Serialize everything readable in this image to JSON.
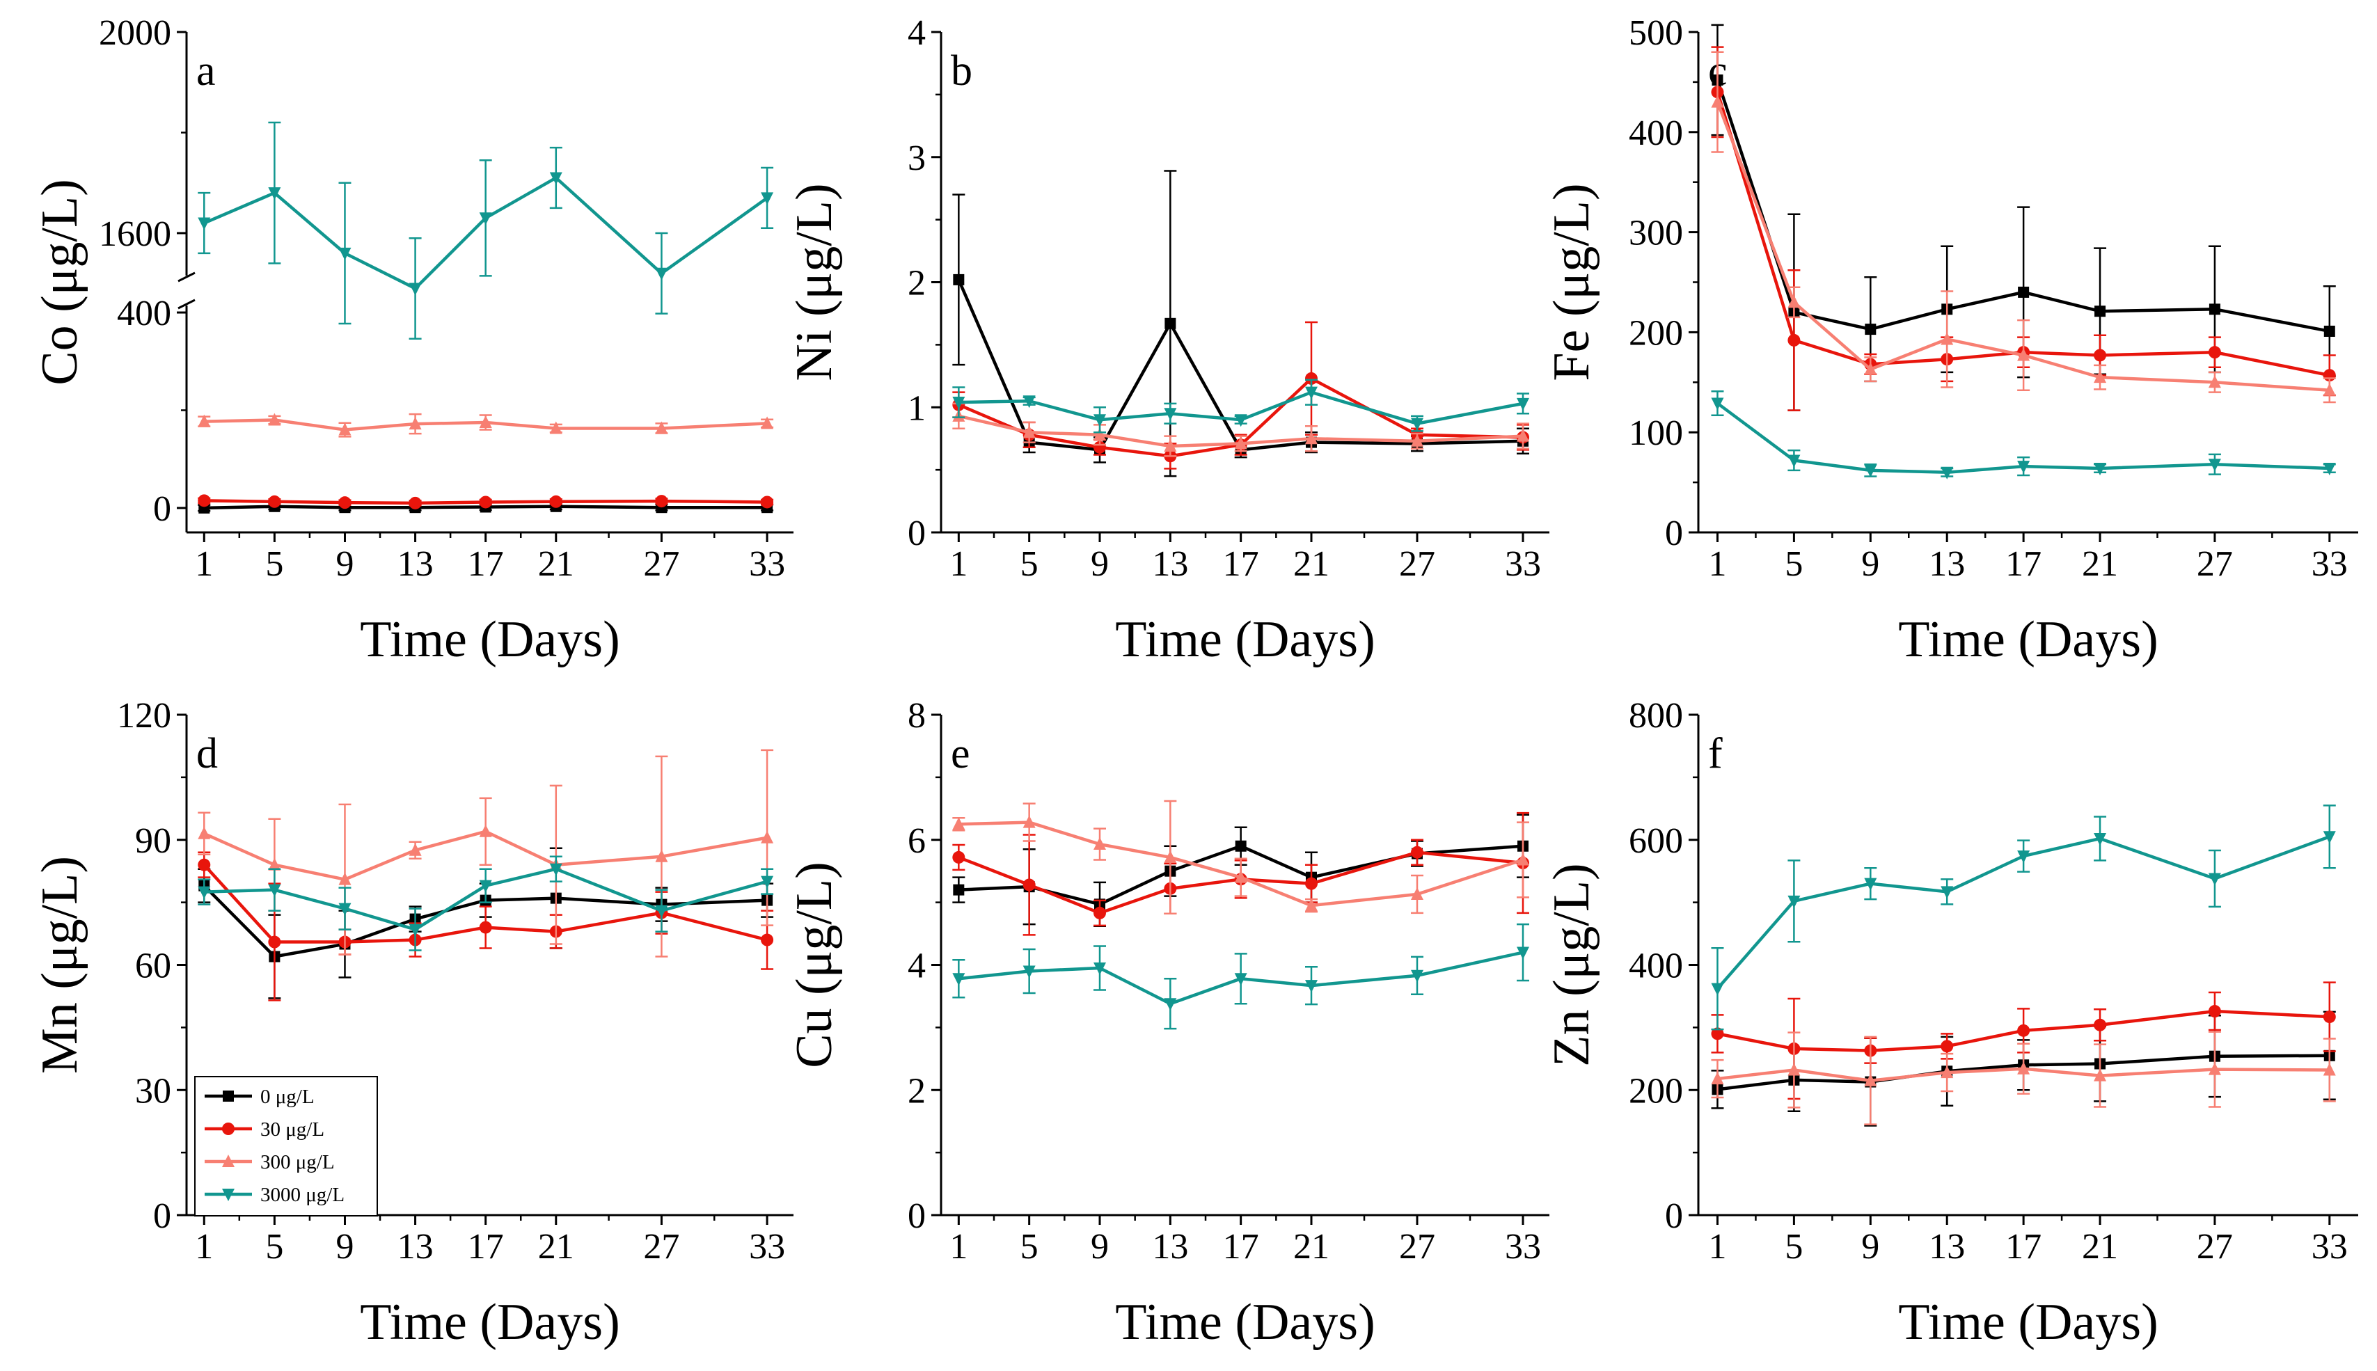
{
  "figure": {
    "legend_location": "lower-left of panel d"
  },
  "legend": [
    {
      "label": "0 μg/L",
      "color": "#000000",
      "marker": "square"
    },
    {
      "label": "30 μg/L",
      "color": "#e8150c",
      "marker": "circle"
    },
    {
      "label": "300 μg/L",
      "color": "#f77f72",
      "marker": "triangle-up"
    },
    {
      "label": "3000 μg/L",
      "color": "#11968f",
      "marker": "triangle-down"
    }
  ],
  "chart_data": [
    {
      "type": "line",
      "panel": "a",
      "xlabel": "Time (Days)",
      "ylabel": "Co (μg/L)",
      "x": [
        1,
        5,
        9,
        13,
        17,
        21,
        27,
        33
      ],
      "xticks": [
        "1",
        "5",
        "9",
        "13",
        "17",
        "21",
        "27",
        "33"
      ],
      "xlim": [
        0,
        34.5
      ],
      "axis_break": true,
      "lower_ylim": [
        -50,
        420
      ],
      "upper_ylim": [
        1510,
        2000
      ],
      "yticks": [
        "0",
        "400",
        "1600",
        "2000"
      ],
      "series": [
        {
          "name": "0 μg/L",
          "values": [
            0,
            3,
            1,
            1,
            2,
            3,
            1,
            1
          ],
          "errors": [
            6,
            6,
            6,
            6,
            6,
            6,
            6,
            6
          ]
        },
        {
          "name": "30 μg/L",
          "values": [
            15,
            13,
            11,
            10,
            12,
            13,
            14,
            12
          ],
          "errors": [
            5,
            5,
            5,
            5,
            5,
            5,
            5,
            5
          ]
        },
        {
          "name": "300 μg/L",
          "values": [
            177,
            180,
            160,
            172,
            175,
            163,
            163,
            173
          ],
          "errors": [
            10,
            8,
            14,
            20,
            15,
            8,
            10,
            8
          ]
        },
        {
          "name": "3000 μg/L",
          "values": [
            1620,
            1680,
            1560,
            1490,
            1630,
            1710,
            1520,
            1670
          ],
          "errors": [
            60,
            140,
            140,
            100,
            115,
            60,
            80,
            60
          ]
        }
      ]
    },
    {
      "type": "line",
      "panel": "b",
      "xlabel": "Time (Days)",
      "ylabel": "Ni (μg/L)",
      "x": [
        1,
        5,
        9,
        13,
        17,
        21,
        27,
        33
      ],
      "xticks": [
        "1",
        "5",
        "9",
        "13",
        "17",
        "21",
        "27",
        "33"
      ],
      "xlim": [
        0,
        34.5
      ],
      "ylim": [
        0,
        4
      ],
      "yticks": [
        "0",
        "1",
        "2",
        "3",
        "4"
      ],
      "series": [
        {
          "name": "0 μg/L",
          "values": [
            2.02,
            0.72,
            0.66,
            1.67,
            0.66,
            0.72,
            0.71,
            0.73
          ],
          "errors": [
            0.68,
            0.08,
            0.1,
            1.22,
            0.06,
            0.08,
            0.06,
            0.1
          ]
        },
        {
          "name": "30 μg/L",
          "values": [
            1.02,
            0.78,
            0.68,
            0.61,
            0.7,
            1.23,
            0.78,
            0.76
          ],
          "errors": [
            0.1,
            0.1,
            0.06,
            0.1,
            0.08,
            0.45,
            0.05,
            0.1
          ]
        },
        {
          "name": "300 μg/L",
          "values": [
            0.93,
            0.8,
            0.78,
            0.69,
            0.71,
            0.75,
            0.73,
            0.77
          ],
          "errors": [
            0.1,
            0.08,
            0.08,
            0.08,
            0.06,
            0.1,
            0.06,
            0.1
          ]
        },
        {
          "name": "3000 μg/L",
          "values": [
            1.04,
            1.05,
            0.9,
            0.95,
            0.9,
            1.12,
            0.87,
            1.03
          ],
          "errors": [
            0.12,
            0.03,
            0.1,
            0.08,
            0.03,
            0.1,
            0.06,
            0.08
          ]
        }
      ]
    },
    {
      "type": "line",
      "panel": "c",
      "xlabel": "Time (Days)",
      "ylabel": "Fe (μg/L)",
      "x": [
        1,
        5,
        9,
        13,
        17,
        21,
        27,
        33
      ],
      "xticks": [
        "1",
        "5",
        "9",
        "13",
        "17",
        "21",
        "27",
        "33"
      ],
      "xlim": [
        0,
        34.5
      ],
      "ylim": [
        0,
        500
      ],
      "yticks": [
        "0",
        "100",
        "200",
        "300",
        "400",
        "500"
      ],
      "series": [
        {
          "name": "0 μg/L",
          "values": [
            452,
            220,
            203,
            223,
            240,
            221,
            223,
            201
          ],
          "errors": [
            55,
            98,
            52,
            63,
            85,
            63,
            63,
            45
          ]
        },
        {
          "name": "30 μg/L",
          "values": [
            440,
            192,
            168,
            173,
            180,
            177,
            180,
            157
          ],
          "errors": [
            45,
            70,
            10,
            22,
            15,
            20,
            15,
            20
          ]
        },
        {
          "name": "300 μg/L",
          "values": [
            430,
            230,
            163,
            193,
            177,
            155,
            150,
            142
          ],
          "errors": [
            50,
            15,
            12,
            48,
            35,
            12,
            10,
            12
          ]
        },
        {
          "name": "3000 μg/L",
          "values": [
            129,
            72,
            62,
            60,
            66,
            64,
            68,
            64
          ],
          "errors": [
            12,
            10,
            6,
            4,
            9,
            4,
            10,
            4
          ]
        }
      ]
    },
    {
      "type": "line",
      "panel": "d",
      "xlabel": "Time (Days)",
      "ylabel": "Mn (μg/L)",
      "x": [
        1,
        5,
        9,
        13,
        17,
        21,
        27,
        33
      ],
      "xticks": [
        "1",
        "5",
        "9",
        "13",
        "17",
        "21",
        "27",
        "33"
      ],
      "xlim": [
        0,
        34.5
      ],
      "ylim": [
        0,
        120
      ],
      "yticks": [
        "0",
        "30",
        "60",
        "90",
        "120"
      ],
      "series": [
        {
          "name": "0 μg/L",
          "values": [
            79,
            62,
            65,
            71,
            75.5,
            76,
            74.5,
            75.5
          ],
          "errors": [
            4,
            10,
            8,
            3,
            4,
            12,
            4,
            4
          ]
        },
        {
          "name": "30 μg/L",
          "values": [
            84,
            65.5,
            65.5,
            66,
            69,
            68,
            72.5,
            66
          ],
          "errors": [
            3,
            14,
            3,
            4,
            5,
            4,
            5,
            7
          ]
        },
        {
          "name": "300 μg/L",
          "values": [
            91.5,
            84,
            80.5,
            87.5,
            92,
            84,
            86,
            90.5
          ],
          "errors": [
            5,
            11,
            18,
            2,
            8,
            19,
            24,
            21
          ]
        },
        {
          "name": "3000 μg/L",
          "values": [
            77.5,
            78,
            73.5,
            68.5,
            79,
            83,
            73,
            80
          ],
          "errors": [
            3,
            5,
            5,
            5,
            4,
            3,
            5,
            3
          ]
        }
      ]
    },
    {
      "type": "line",
      "panel": "e",
      "xlabel": "Time (Days)",
      "ylabel": "Cu (μg/L)",
      "x": [
        1,
        5,
        9,
        13,
        17,
        21,
        27,
        33
      ],
      "xticks": [
        "1",
        "5",
        "9",
        "13",
        "17",
        "21",
        "27",
        "33"
      ],
      "xlim": [
        0,
        34.5
      ],
      "ylim": [
        0,
        8
      ],
      "yticks": [
        "0",
        "2",
        "4",
        "6",
        "8"
      ],
      "series": [
        {
          "name": "0 μg/L",
          "values": [
            5.2,
            5.25,
            4.97,
            5.5,
            5.9,
            5.4,
            5.78,
            5.9
          ],
          "errors": [
            0.2,
            0.6,
            0.35,
            0.4,
            0.3,
            0.4,
            0.2,
            0.5
          ]
        },
        {
          "name": "30 μg/L",
          "values": [
            5.72,
            5.28,
            4.83,
            5.22,
            5.37,
            5.3,
            5.8,
            5.63
          ],
          "errors": [
            0.2,
            0.8,
            0.2,
            0.4,
            0.3,
            0.3,
            0.2,
            0.8
          ]
        },
        {
          "name": "300 μg/L",
          "values": [
            6.25,
            6.28,
            5.93,
            5.72,
            5.4,
            4.95,
            5.13,
            5.68
          ],
          "errors": [
            0.1,
            0.3,
            0.25,
            0.9,
            0.3,
            0.1,
            0.3,
            0.6
          ]
        },
        {
          "name": "3000 μg/L",
          "values": [
            3.78,
            3.9,
            3.95,
            3.38,
            3.78,
            3.67,
            3.83,
            4.2
          ],
          "errors": [
            0.3,
            0.35,
            0.35,
            0.4,
            0.4,
            0.3,
            0.3,
            0.45
          ]
        }
      ]
    },
    {
      "type": "line",
      "panel": "f",
      "xlabel": "Time (Days)",
      "ylabel": "Zn (μg/L)",
      "x": [
        1,
        5,
        9,
        13,
        17,
        21,
        27,
        33
      ],
      "xticks": [
        "1",
        "5",
        "9",
        "13",
        "17",
        "21",
        "27",
        "33"
      ],
      "xlim": [
        0,
        34.5
      ],
      "ylim": [
        0,
        800
      ],
      "yticks": [
        "0",
        "200",
        "400",
        "600",
        "800"
      ],
      "series": [
        {
          "name": "0 μg/L",
          "values": [
            201,
            216,
            213,
            230,
            240,
            242,
            254,
            255
          ],
          "errors": [
            30,
            50,
            70,
            55,
            40,
            60,
            65,
            70
          ]
        },
        {
          "name": "30 μg/L",
          "values": [
            290,
            266,
            263,
            270,
            295,
            304,
            326,
            317
          ],
          "errors": [
            30,
            80,
            20,
            20,
            35,
            25,
            30,
            55
          ]
        },
        {
          "name": "300 μg/L",
          "values": [
            218,
            232,
            215,
            228,
            234,
            223,
            233,
            232
          ],
          "errors": [
            30,
            60,
            70,
            30,
            40,
            50,
            60,
            50
          ]
        },
        {
          "name": "3000 μg/L",
          "values": [
            362,
            502,
            530,
            517,
            574,
            602,
            538,
            605
          ],
          "errors": [
            65,
            65,
            25,
            20,
            25,
            35,
            45,
            50
          ]
        }
      ]
    }
  ]
}
